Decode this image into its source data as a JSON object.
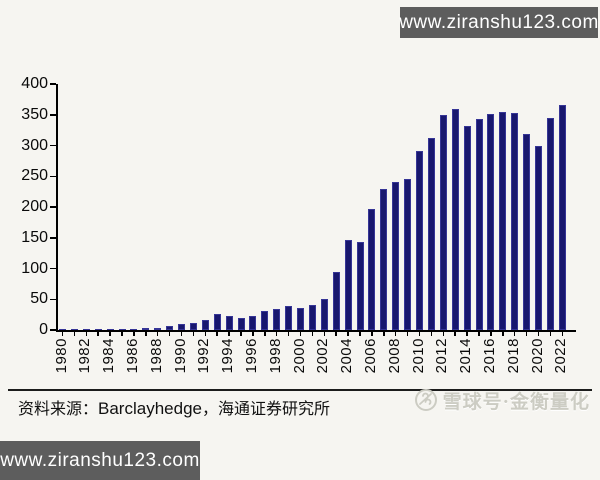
{
  "watermarks": {
    "top_right": "www.ziranshu123.com",
    "bottom_left": "www.ziranshu123.com",
    "stamp_text": "雪球号·金衡量化"
  },
  "footer": {
    "source_prefix": "资料来源：",
    "source_latin": "Barclayhedge",
    "source_suffix": "，海通证券研究所"
  },
  "colors": {
    "bar_fill": "#18176e",
    "bar_edge": "#4342a8",
    "axis": "#000000",
    "watermark_box_bg": "#5d5d5d",
    "watermark_text": "#ffffff",
    "stamp_gray": "#ccccc3",
    "page_bg": "#f6f5f1"
  },
  "chart_data": {
    "type": "bar",
    "title": "",
    "xlabel": "",
    "ylabel": "",
    "grid": false,
    "legend": "none",
    "ylim": [
      0,
      400
    ],
    "ytick_interval": 50,
    "xtick_label_every": 2,
    "categories": [
      1980,
      1981,
      1982,
      1983,
      1984,
      1985,
      1986,
      1987,
      1988,
      1989,
      1990,
      1991,
      1992,
      1993,
      1994,
      1995,
      1996,
      1997,
      1998,
      1999,
      2000,
      2001,
      2002,
      2003,
      2004,
      2005,
      2006,
      2007,
      2008,
      2009,
      2010,
      2011,
      2012,
      2013,
      2014,
      2015,
      2016,
      2017,
      2018,
      2019,
      2020,
      2021,
      2022
    ],
    "values": [
      1,
      1,
      1,
      1,
      1,
      2,
      2,
      4,
      4,
      6,
      9,
      12,
      16,
      26,
      22,
      20,
      22,
      31,
      34,
      39,
      35,
      41,
      50,
      95,
      146,
      143,
      197,
      229,
      241,
      245,
      291,
      313,
      349,
      360,
      332,
      343,
      351,
      354,
      353,
      318,
      300,
      345,
      366
    ]
  }
}
